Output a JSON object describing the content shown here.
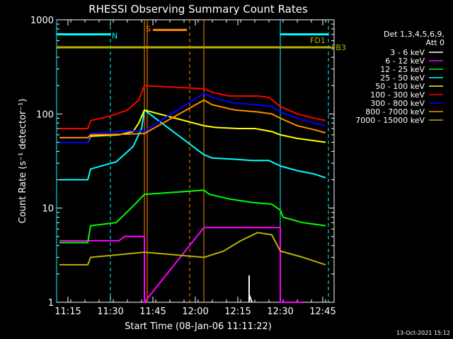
{
  "chart_data": {
    "type": "line",
    "title": "RHESSI Observing Summary Count Rates",
    "xlabel": "Start Time (08-Jan-06 11:11:22)",
    "ylabel": "Count Rate (s⁻¹ detector⁻¹)",
    "yscale": "log",
    "ylim": [
      1,
      1000
    ],
    "xlim": [
      "11:11",
      "12:49"
    ],
    "x_ticks": [
      "11:15",
      "11:30",
      "11:45",
      "12:00",
      "12:15",
      "12:30",
      "12:45"
    ],
    "y_ticks": [
      "1",
      "10",
      "100",
      "1000"
    ],
    "legend_title": [
      "Det 1,3,4,5,6,9,",
      "Att 0"
    ],
    "legend_position": "right",
    "date_stamp": "13-Oct-2021 15:12",
    "series": [
      {
        "name": "3 - 6 keV",
        "color": "#ffffff",
        "points": [
          [
            "12:19",
            1.0
          ],
          [
            "12:19",
            1.9
          ],
          [
            "12:19",
            1.2
          ],
          [
            "12:20",
            1.0
          ]
        ]
      },
      {
        "name": "6 - 12 keV",
        "color": "#ff00ff",
        "points": [
          [
            "11:12",
            4.5
          ],
          [
            "11:33",
            4.5
          ],
          [
            "11:35",
            5.0
          ],
          [
            "11:42",
            5.0
          ],
          [
            "11:42",
            1.0
          ],
          [
            "12:03",
            6.2
          ],
          [
            "12:30",
            6.2
          ],
          [
            "12:30",
            1.0
          ],
          [
            "12:38",
            1.0
          ]
        ]
      },
      {
        "name": "12 - 25 keV",
        "color": "#00ff00",
        "points": [
          [
            "11:12",
            4.3
          ],
          [
            "11:22",
            4.3
          ],
          [
            "11:23",
            6.5
          ],
          [
            "11:32",
            7.0
          ],
          [
            "11:38",
            10.5
          ],
          [
            "11:42",
            14.0
          ],
          [
            "12:03",
            15.5
          ],
          [
            "12:05",
            14.0
          ],
          [
            "12:12",
            12.5
          ],
          [
            "12:20",
            11.5
          ],
          [
            "12:27",
            11.0
          ],
          [
            "12:30",
            9.5
          ],
          [
            "12:31",
            8.0
          ],
          [
            "12:38",
            7.0
          ],
          [
            "12:46",
            6.5
          ]
        ]
      },
      {
        "name": "25 - 50 keV",
        "color": "#00ffff",
        "points": [
          [
            "11:12",
            20
          ],
          [
            "11:22",
            20
          ],
          [
            "11:23",
            26
          ],
          [
            "11:32",
            31
          ],
          [
            "11:38",
            45
          ],
          [
            "11:41",
            70
          ],
          [
            "11:42",
            110
          ],
          [
            "12:03",
            37
          ],
          [
            "12:06",
            34
          ],
          [
            "12:14",
            33
          ],
          [
            "12:20",
            32
          ],
          [
            "12:26",
            32
          ],
          [
            "12:30",
            28
          ],
          [
            "12:36",
            25
          ],
          [
            "12:42",
            23
          ],
          [
            "12:46",
            21
          ]
        ]
      },
      {
        "name": "50 - 100 keV",
        "color": "#ffff00",
        "points": [
          [
            "11:12",
            50
          ],
          [
            "11:22",
            50
          ],
          [
            "11:23",
            58
          ],
          [
            "11:33",
            60
          ],
          [
            "11:38",
            65
          ],
          [
            "11:40",
            80
          ],
          [
            "11:42",
            110
          ],
          [
            "12:03",
            75
          ],
          [
            "12:07",
            72
          ],
          [
            "12:15",
            70
          ],
          [
            "12:21",
            70
          ],
          [
            "12:27",
            65
          ],
          [
            "12:30",
            60
          ],
          [
            "12:36",
            55
          ],
          [
            "12:42",
            52
          ],
          [
            "12:46",
            50
          ]
        ]
      },
      {
        "name": "100 - 300 keV",
        "color": "#ff0000",
        "points": [
          [
            "11:12",
            70
          ],
          [
            "11:22",
            70
          ],
          [
            "11:23",
            85
          ],
          [
            "11:30",
            95
          ],
          [
            "11:36",
            110
          ],
          [
            "11:40",
            140
          ],
          [
            "11:42",
            200
          ],
          [
            "12:03",
            185
          ],
          [
            "12:06",
            170
          ],
          [
            "12:12",
            155
          ],
          [
            "12:22",
            155
          ],
          [
            "12:26",
            150
          ],
          [
            "12:30",
            120
          ],
          [
            "12:36",
            100
          ],
          [
            "12:42",
            90
          ],
          [
            "12:46",
            85
          ]
        ]
      },
      {
        "name": "300 - 800 keV",
        "color": "#0000ff",
        "points": [
          [
            "11:12",
            50
          ],
          [
            "11:22",
            50
          ],
          [
            "11:23",
            62
          ],
          [
            "11:36",
            66
          ],
          [
            "11:42",
            66
          ],
          [
            "12:03",
            165
          ],
          [
            "12:06",
            150
          ],
          [
            "12:14",
            130
          ],
          [
            "12:22",
            125
          ],
          [
            "12:27",
            120
          ],
          [
            "12:30",
            105
          ],
          [
            "12:36",
            90
          ],
          [
            "12:42",
            80
          ],
          [
            "12:46",
            75
          ]
        ]
      },
      {
        "name": "800 - 7000 keV",
        "color": "#ff8c00",
        "points": [
          [
            "11:12",
            56
          ],
          [
            "11:22",
            56
          ],
          [
            "11:23",
            60
          ],
          [
            "11:36",
            61
          ],
          [
            "11:42",
            62
          ],
          [
            "12:03",
            140
          ],
          [
            "12:06",
            125
          ],
          [
            "12:14",
            110
          ],
          [
            "12:22",
            105
          ],
          [
            "12:27",
            100
          ],
          [
            "12:30",
            90
          ],
          [
            "12:36",
            75
          ],
          [
            "12:42",
            68
          ],
          [
            "12:46",
            63
          ]
        ]
      },
      {
        "name": "7000 - 15000 keV",
        "color": "#b8b000",
        "points": [
          [
            "11:12",
            2.5
          ],
          [
            "11:22",
            2.5
          ],
          [
            "11:23",
            3.0
          ],
          [
            "11:33",
            3.2
          ],
          [
            "11:42",
            3.4
          ],
          [
            "12:03",
            3.0
          ],
          [
            "12:10",
            3.5
          ],
          [
            "12:16",
            4.5
          ],
          [
            "12:22",
            5.5
          ],
          [
            "12:27",
            5.2
          ],
          [
            "12:30",
            3.5
          ],
          [
            "12:38",
            3.0
          ],
          [
            "12:46",
            2.5
          ]
        ]
      }
    ],
    "state_bars": [
      {
        "label": "N",
        "color": "#00ffff",
        "start": "11:11",
        "end": "11:30",
        "y": 700,
        "style": "line"
      },
      {
        "label": "S",
        "color": "#ff8c00",
        "start": "11:45",
        "end": "11:57",
        "y": 780,
        "style": "line"
      },
      {
        "label": "FD1",
        "color": "#b8b000",
        "start": "11:11",
        "end": "12:48",
        "y": 510,
        "style": "line"
      },
      {
        "label": "FB3",
        "color": "#b8b000",
        "start": "12:48",
        "end": "12:48",
        "y": 510,
        "style": "label"
      },
      {
        "label": "",
        "color": "#00ffff",
        "start": "12:30",
        "end": "12:47",
        "y": 700,
        "style": "line"
      }
    ],
    "vertical_markers": [
      {
        "t": "11:11",
        "color": "#00ffff",
        "style": "solid"
      },
      {
        "t": "11:30",
        "color": "#00ffff",
        "style": "dashed"
      },
      {
        "t": "11:42",
        "color": "#ff8c00",
        "style": "solid"
      },
      {
        "t": "11:43",
        "color": "#ff8c00",
        "style": "solid"
      },
      {
        "t": "11:58",
        "color": "#ff8c00",
        "style": "dashed"
      },
      {
        "t": "12:03",
        "color": "#ff8c00",
        "style": "solid"
      },
      {
        "t": "12:30",
        "color": "#00ffff",
        "style": "solid"
      },
      {
        "t": "12:47",
        "color": "#00ffff",
        "style": "dashed"
      }
    ]
  }
}
